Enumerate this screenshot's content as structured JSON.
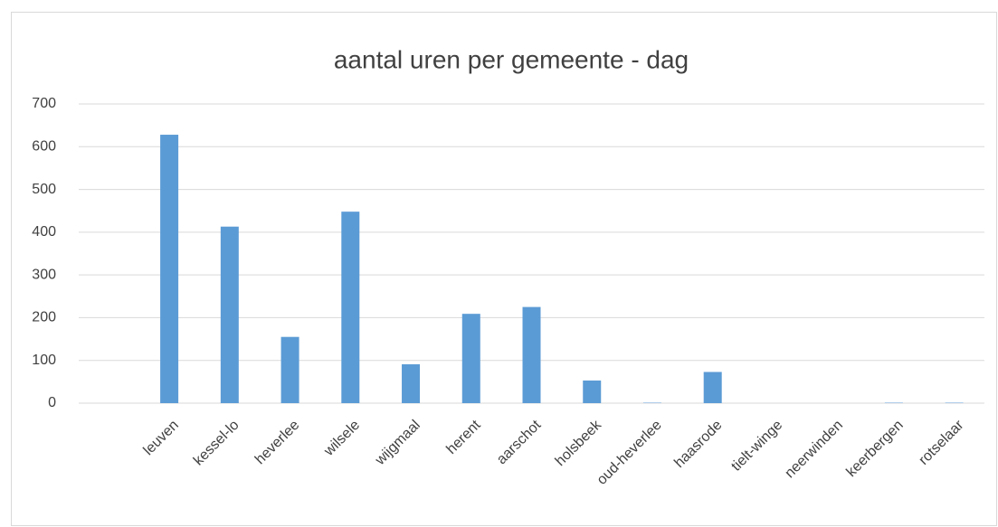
{
  "chart_data": {
    "type": "bar",
    "title": "aantal uren per gemeente -  dag",
    "categories": [
      null,
      "leuven",
      "kessel-lo",
      "heverlee",
      "wilsele",
      "wijgmaal",
      "herent",
      "aarschot",
      "holsbeek",
      "oud-heverlee",
      "haasrode",
      "tielt-winge",
      "neerwinden",
      "keerbergen",
      "rotselaar"
    ],
    "values": [
      null,
      628,
      413,
      155,
      448,
      91,
      209,
      225,
      53,
      1,
      73,
      0,
      0,
      1,
      1
    ],
    "color": "#5b9bd5",
    "ylim": [
      0,
      700
    ],
    "yticks": [
      0,
      100,
      200,
      300,
      400,
      500,
      600,
      700
    ],
    "grid": true
  }
}
